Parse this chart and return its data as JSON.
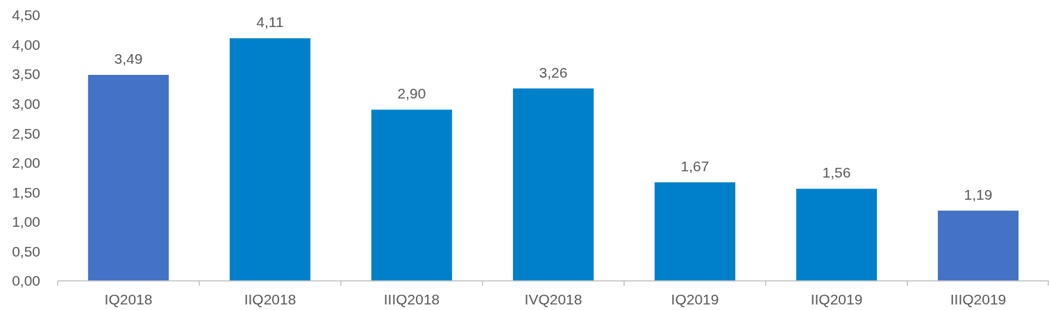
{
  "chart_data": {
    "type": "bar",
    "categories": [
      "IQ2018",
      "IIQ2018",
      "IIIQ2018",
      "IVQ2018",
      "IQ2019",
      "IIQ2019",
      "IIIQ2019"
    ],
    "values": [
      3.49,
      4.11,
      2.9,
      3.26,
      1.67,
      1.56,
      1.19
    ],
    "colors": [
      "#4472c4",
      "#0080c8",
      "#0080c8",
      "#0080c8",
      "#0080c8",
      "#0080c8",
      "#4472c4"
    ],
    "value_labels": [
      "3,49",
      "4,11",
      "2,90",
      "3,26",
      "1,67",
      "1,56",
      "1,19"
    ],
    "ylim": [
      0,
      4.5
    ],
    "yticks": [
      {
        "value": 0,
        "label": "0,00"
      },
      {
        "value": 0.5,
        "label": "0,50"
      },
      {
        "value": 1,
        "label": "1,00"
      },
      {
        "value": 1.5,
        "label": "1,50"
      },
      {
        "value": 2,
        "label": "2,00"
      },
      {
        "value": 2.5,
        "label": "2,50"
      },
      {
        "value": 3,
        "label": "3,00"
      },
      {
        "value": 3.5,
        "label": "3,50"
      },
      {
        "value": 4,
        "label": "4,00"
      },
      {
        "value": 4.5,
        "label": "4,50"
      }
    ],
    "grid": false
  }
}
